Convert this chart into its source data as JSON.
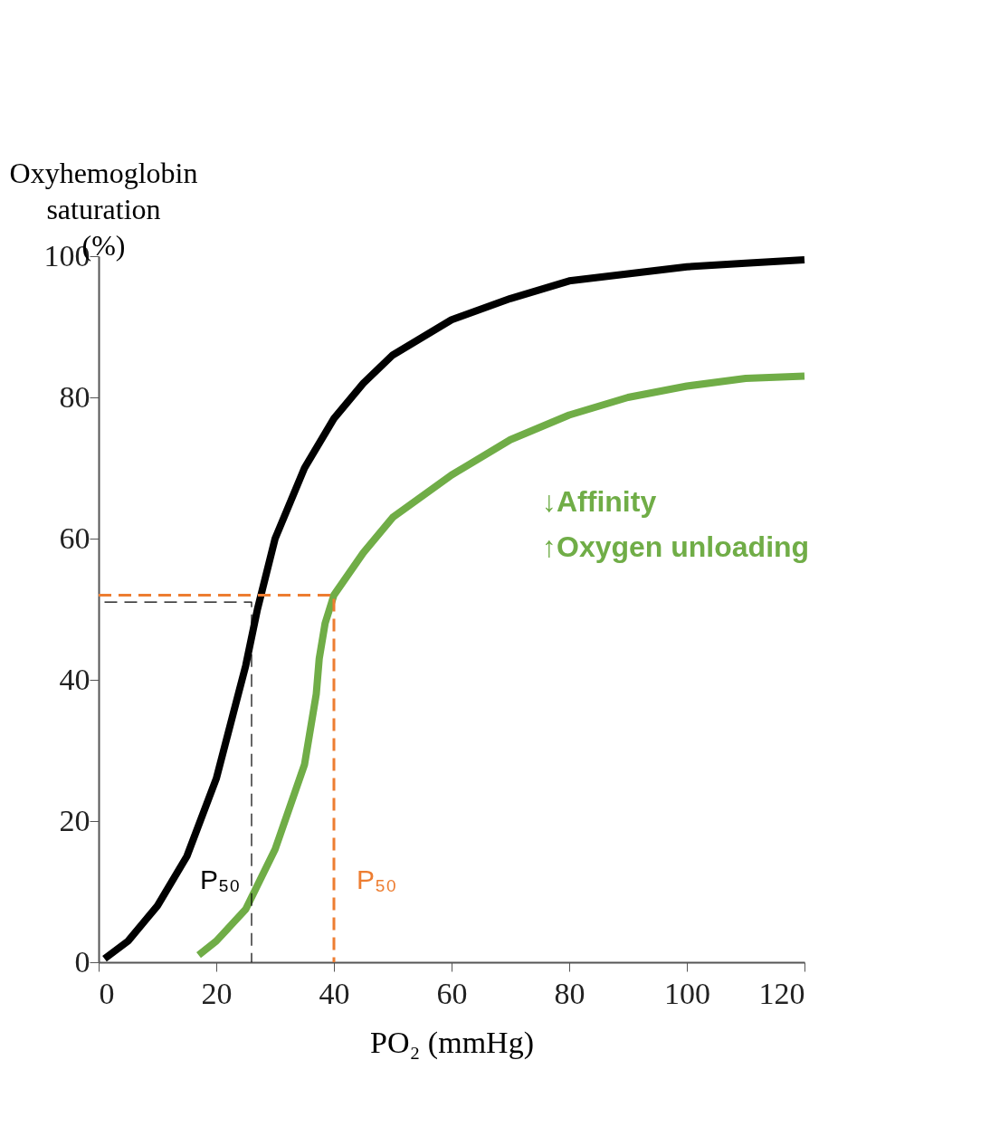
{
  "chart_data": {
    "type": "line",
    "xlabel": "PO₂ (mmHg)",
    "ylabel": "Oxyhemoglobin\nsaturation\n(%)",
    "xlim": [
      0,
      120
    ],
    "xticks": [
      0,
      20,
      40,
      60,
      80,
      100,
      120
    ],
    "ylim": [
      0,
      100
    ],
    "yticks": [
      0,
      20,
      40,
      60,
      80,
      100
    ],
    "grid": false,
    "series": [
      {
        "color": "#000000",
        "x": [
          1,
          5,
          10,
          15,
          20,
          25,
          27,
          30,
          35,
          40,
          45,
          50,
          60,
          70,
          80,
          90,
          100,
          110,
          120
        ],
        "values": [
          0.5,
          3,
          8,
          15,
          26,
          42,
          50,
          60,
          70,
          77,
          82,
          86,
          91,
          94,
          96.5,
          97.5,
          98.5,
          99,
          99.5
        ],
        "line_style": "solid"
      },
      {
        "color": "#70ad47",
        "x": [
          17,
          20,
          25,
          30,
          35,
          37,
          37.5,
          38.5,
          40,
          45,
          50,
          60,
          70,
          80,
          90,
          100,
          110,
          120
        ],
        "values": [
          1,
          3,
          7.5,
          16,
          28,
          38,
          43,
          48,
          52,
          58,
          63,
          69,
          74,
          77.5,
          80,
          81.6,
          82.7,
          83
        ],
        "line_style": "solid"
      },
      {
        "color": "#000000",
        "x": [
          1,
          26,
          26
        ],
        "values": [
          51,
          51,
          0
        ],
        "line_style": "dashed"
      },
      {
        "color": "#ed7d31",
        "x": [
          0,
          40,
          40
        ],
        "values": [
          52,
          52,
          0
        ],
        "line_style": "dashed"
      }
    ],
    "annotations": [
      "P₅₀",
      "P₅₀",
      "↓Affinity",
      "↑Oxygen unloading"
    ]
  }
}
